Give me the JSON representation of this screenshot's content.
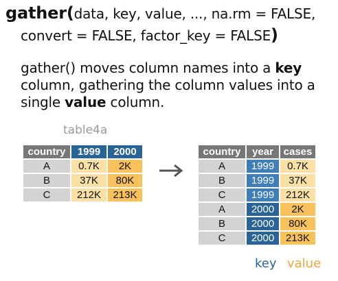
{
  "signature": {
    "fn": "gather(",
    "args1": "data, key, value, ..., na.rm = FALSE,",
    "args2": "convert = FALSE, factor_key = FALSE",
    "close": ")"
  },
  "description": {
    "p1": "gather() moves column names into a ",
    "b1": "key",
    "p2": " column, gathering the column values into a single ",
    "b2": "value",
    "p3": " column."
  },
  "source_table": {
    "name": "table4a",
    "headers": [
      "country",
      "1999",
      "2000"
    ],
    "rows": [
      [
        "A",
        "0.7K",
        "2K"
      ],
      [
        "B",
        "37K",
        "80K"
      ],
      [
        "C",
        "212K",
        "213K"
      ]
    ]
  },
  "result_table": {
    "headers": [
      "country",
      "year",
      "cases"
    ],
    "rows": [
      [
        "A",
        "1999",
        "0.7K"
      ],
      [
        "B",
        "1999",
        "37K"
      ],
      [
        "C",
        "1999",
        "212K"
      ],
      [
        "A",
        "2000",
        "2K"
      ],
      [
        "B",
        "2000",
        "80K"
      ],
      [
        "C",
        "2000",
        "213K"
      ]
    ]
  },
  "labels": {
    "key": "key",
    "value": "value"
  },
  "colors": {
    "key_blue": "#2a6496",
    "key_light_blue": "#3f7fb8",
    "value_orange": "#f9c15c",
    "value_light_orange": "#fbe1a6",
    "header_gray": "#777777",
    "cell_gray": "#d3d3d3"
  }
}
